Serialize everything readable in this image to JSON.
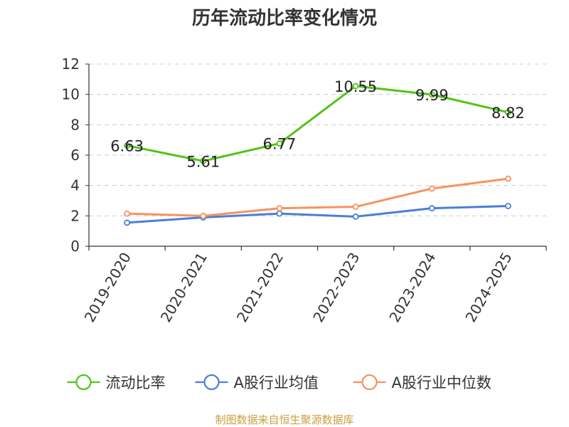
{
  "chart_data": {
    "type": "line",
    "title": "历年流动比率变化情况",
    "categories": [
      "2019-2020",
      "2020-2021",
      "2021-2022",
      "2022-2023",
      "2023-2024",
      "2024-2025"
    ],
    "ylim": [
      0,
      12
    ],
    "yticks": [
      0,
      2,
      4,
      6,
      8,
      10,
      12
    ],
    "grid": true,
    "legend_position": "bottom",
    "series": [
      {
        "name": "流动比率",
        "color": "#52c41a",
        "values": [
          6.63,
          5.61,
          6.77,
          10.55,
          9.99,
          8.82
        ],
        "labels": [
          "6.63",
          "5.61",
          "6.77",
          "10.55",
          "9.99",
          "8.82"
        ]
      },
      {
        "name": "A股行业均值",
        "color": "#4a7fd8",
        "values": [
          1.55,
          1.9,
          2.15,
          1.95,
          2.5,
          2.65
        ]
      },
      {
        "name": "A股行业中位数",
        "color": "#f7925f",
        "values": [
          2.15,
          2.0,
          2.5,
          2.6,
          3.8,
          4.45
        ]
      }
    ]
  },
  "source": {
    "text": "制图数据来自恒生聚源数据库",
    "color": "#c8a040"
  }
}
